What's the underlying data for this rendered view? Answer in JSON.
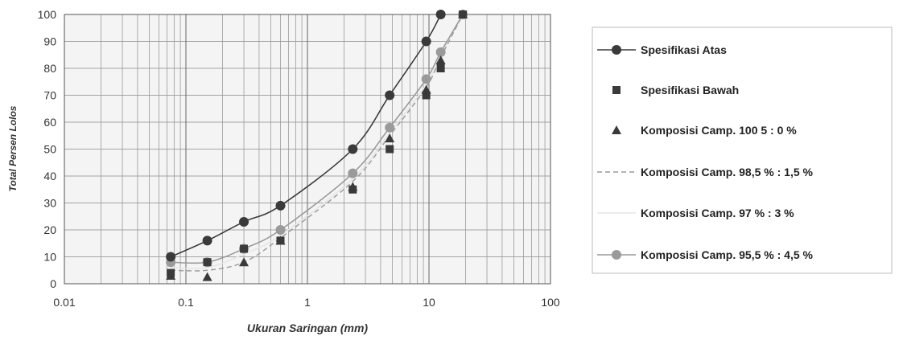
{
  "chart_data": {
    "type": "line",
    "title": "",
    "xlabel": "Ukuran Saringan (mm)",
    "ylabel": "Total Persen Lolos",
    "x_scale": "log",
    "xlim": [
      0.01,
      100
    ],
    "ylim": [
      0,
      100
    ],
    "x_ticks": [
      "0.01",
      "0.1",
      "1",
      "10",
      "100"
    ],
    "y_ticks": [
      "0",
      "10",
      "20",
      "30",
      "40",
      "50",
      "60",
      "70",
      "80",
      "90",
      "100"
    ],
    "grid": true,
    "legend_position": "right",
    "series": [
      {
        "name": "Spesifikasi Atas",
        "marker": "circle",
        "line": "solid",
        "color": "#3a3a3a",
        "x": [
          0.075,
          0.15,
          0.3,
          0.6,
          2.36,
          4.75,
          9.5,
          12.5
        ],
        "y": [
          10,
          16,
          23,
          29,
          50,
          70,
          90,
          100
        ]
      },
      {
        "name": "Spesifikasi Bawah",
        "marker": "square",
        "line": "none",
        "color": "#3a3a3a",
        "x": [
          0.075,
          0.15,
          0.3,
          0.6,
          2.36,
          4.75,
          9.5,
          12.5,
          19
        ],
        "y": [
          4,
          8,
          13,
          16,
          35,
          50,
          70,
          80,
          100
        ]
      },
      {
        "name": "Komposisi Camp. 100 5 : 0 %",
        "marker": "triangle",
        "line": "none",
        "color": "#3a3a3a",
        "x": [
          0.075,
          0.15,
          0.3,
          0.6,
          2.36,
          4.75,
          9.5,
          12.5,
          19
        ],
        "y": [
          3,
          2.5,
          8,
          16,
          36,
          54,
          72,
          83,
          100
        ]
      },
      {
        "name": "Komposisi Camp. 98,5 % : 1,5 %",
        "marker": "none",
        "line": "dashed",
        "color": "#9a9a9a",
        "x": [
          0.075,
          0.15,
          0.3,
          0.6,
          2.36,
          4.75,
          9.5,
          12.5,
          19
        ],
        "y": [
          5,
          5,
          8,
          17,
          38,
          55,
          73,
          84,
          100
        ]
      },
      {
        "name": "Komposisi Camp. 97 % : 3 %",
        "marker": "none",
        "line": "solid",
        "color": "#e6e6e6",
        "x": [
          0.075,
          0.15,
          0.3,
          0.6,
          2.36,
          4.75,
          9.5,
          12.5,
          19
        ],
        "y": [
          6,
          6,
          11,
          18,
          39,
          56,
          74,
          85,
          100
        ]
      },
      {
        "name": "Komposisi Camp. 95,5 % : 4,5  %",
        "marker": "circle",
        "line": "solid",
        "color": "#9a9a9a",
        "x": [
          0.075,
          0.15,
          0.3,
          0.6,
          2.36,
          4.75,
          9.5,
          12.5,
          19
        ],
        "y": [
          8,
          8,
          13,
          20,
          41,
          58,
          76,
          86,
          100
        ]
      }
    ]
  }
}
